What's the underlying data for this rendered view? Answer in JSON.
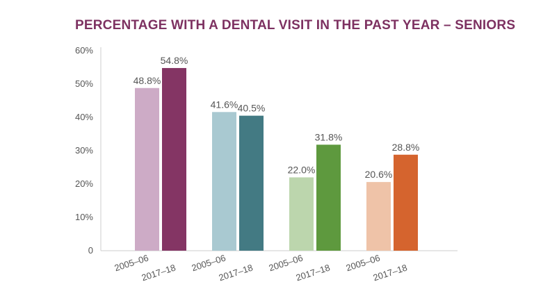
{
  "chart_data": {
    "type": "bar",
    "title": "PERCENTAGE WITH A DENTAL VISIT IN THE PAST YEAR – SENIORS",
    "xlabel": "",
    "ylabel": "",
    "ylim": [
      0,
      60
    ],
    "yticks": [
      {
        "value": 0,
        "label": "0"
      },
      {
        "value": 10,
        "label": "10%"
      },
      {
        "value": 20,
        "label": "20%"
      },
      {
        "value": 30,
        "label": "30%"
      },
      {
        "value": 40,
        "label": "40%"
      },
      {
        "value": 50,
        "label": "50%"
      },
      {
        "value": 60,
        "label": "60%"
      }
    ],
    "legend": "none",
    "grid": false,
    "groups": [
      {
        "bars": [
          {
            "category": "2005–06",
            "value": 48.8,
            "label": "48.8%",
            "color": "#cdabc6"
          },
          {
            "category": "2017–18",
            "value": 54.8,
            "label": "54.8%",
            "color": "#843564"
          }
        ]
      },
      {
        "bars": [
          {
            "category": "2005–06",
            "value": 41.6,
            "label": "41.6%",
            "color": "#a9c9d1"
          },
          {
            "category": "2017–18",
            "value": 40.5,
            "label": "40.5%",
            "color": "#437a83"
          }
        ]
      },
      {
        "bars": [
          {
            "category": "2005–06",
            "value": 22.0,
            "label": "22.0%",
            "color": "#bcd6ad"
          },
          {
            "category": "2017–18",
            "value": 31.8,
            "label": "31.8%",
            "color": "#5e993e"
          }
        ]
      },
      {
        "bars": [
          {
            "category": "2005–06",
            "value": 20.6,
            "label": "20.6%",
            "color": "#efc3a8"
          },
          {
            "category": "2017–18",
            "value": 28.8,
            "label": "28.8%",
            "color": "#d5642e"
          }
        ]
      }
    ]
  },
  "colors": {
    "title": "#7d3161",
    "axis": "#cccccc",
    "text": "#555555"
  }
}
